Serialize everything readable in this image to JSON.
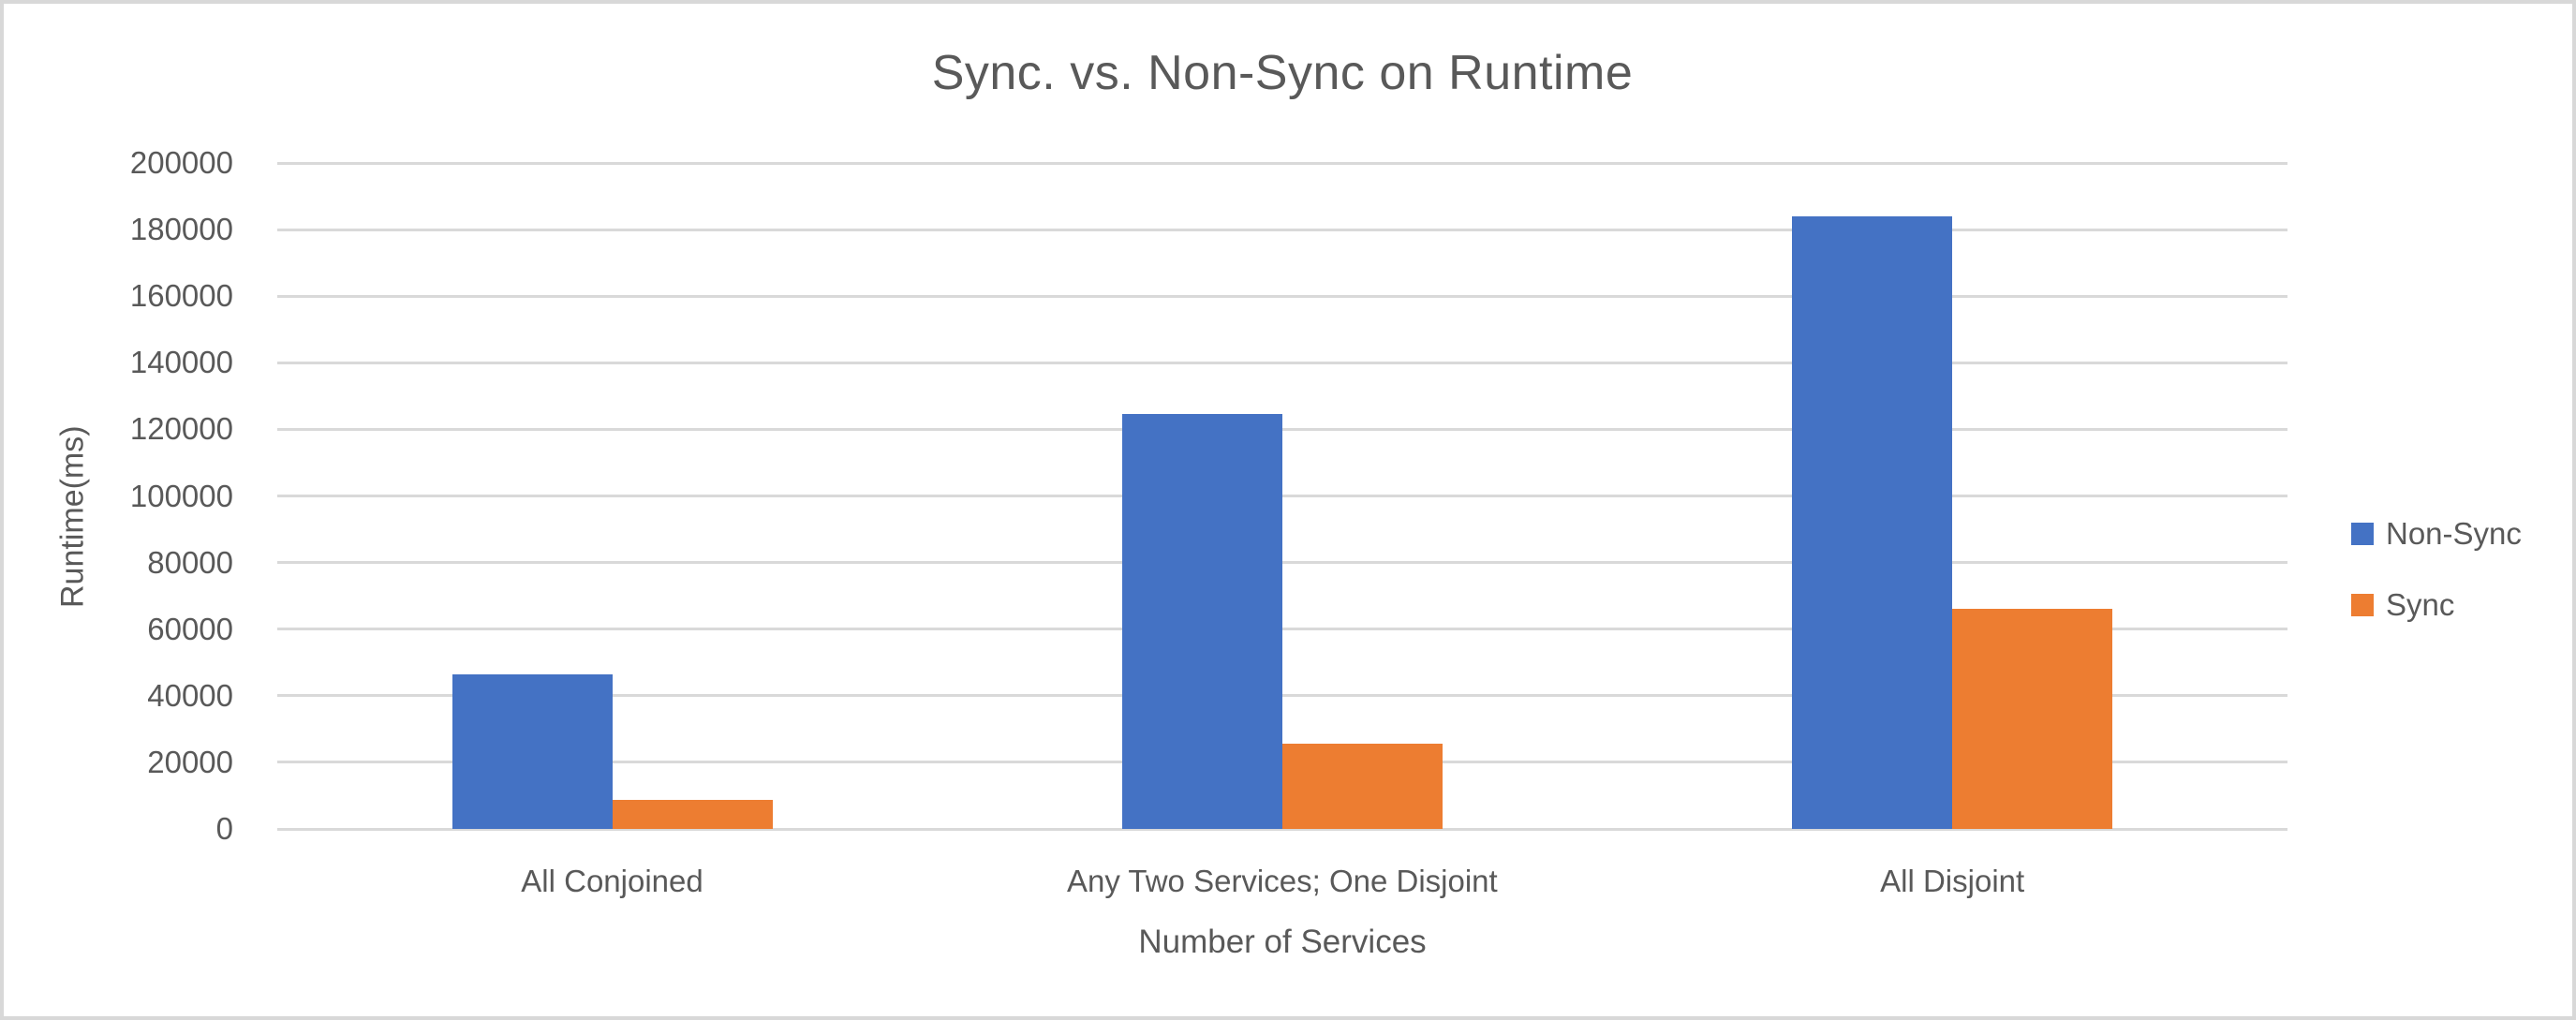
{
  "window": {
    "background_color": "#FFFFFF",
    "border_color": "#D8D8D8"
  },
  "chart_data": {
    "type": "bar",
    "title": "Sync. vs. Non-Sync on Runtime",
    "xlabel": "Number of Services",
    "ylabel": "Runtime(ms)",
    "categories": [
      "All Conjoined",
      "Any Two Services; One Disjoint",
      "All Disjoint"
    ],
    "series": [
      {
        "name": "Non-Sync",
        "color": "#4472C4",
        "values": [
          46500,
          124700,
          184000
        ]
      },
      {
        "name": "Sync",
        "color": "#ED7D31",
        "values": [
          8700,
          25500,
          66000
        ]
      }
    ],
    "ylim": [
      0,
      200000
    ],
    "ytick_step": 20000,
    "ytick_labels": [
      "200000",
      "180000",
      "160000",
      "140000",
      "120000",
      "100000",
      "80000",
      "60000",
      "40000",
      "20000",
      "0"
    ],
    "grid": true,
    "gridline_color": "#D9D9D9",
    "text_color": "#595959",
    "legend_position": "right"
  }
}
